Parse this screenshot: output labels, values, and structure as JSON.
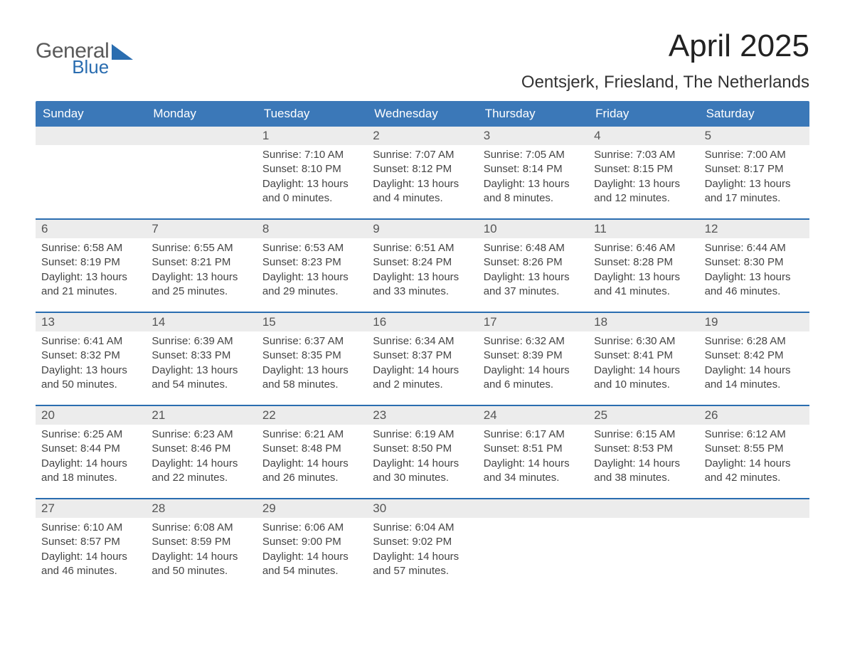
{
  "colors": {
    "header_blue": "#3b78b8",
    "accent_blue": "#2a6db0",
    "band_grey": "#ececec",
    "text": "#333333",
    "background": "#ffffff",
    "logo_grey": "#5a5a5a",
    "logo_blue": "#2a6db0"
  },
  "typography": {
    "title_fontsize_pt": 33,
    "location_fontsize_pt": 18,
    "weekday_fontsize_pt": 13,
    "daynum_fontsize_pt": 13,
    "body_fontsize_pt": 11,
    "font_family": "Arial"
  },
  "logo": {
    "line1": "General",
    "line2": "Blue"
  },
  "title": "April 2025",
  "location": "Oentsjerk, Friesland, The Netherlands",
  "weekdays": [
    "Sunday",
    "Monday",
    "Tuesday",
    "Wednesday",
    "Thursday",
    "Friday",
    "Saturday"
  ],
  "labels": {
    "sunrise": "Sunrise:",
    "sunset": "Sunset:",
    "daylight": "Daylight:"
  },
  "weeks": [
    [
      null,
      null,
      {
        "n": "1",
        "sunrise": "7:10 AM",
        "sunset": "8:10 PM",
        "daylight": "13 hours and 0 minutes."
      },
      {
        "n": "2",
        "sunrise": "7:07 AM",
        "sunset": "8:12 PM",
        "daylight": "13 hours and 4 minutes."
      },
      {
        "n": "3",
        "sunrise": "7:05 AM",
        "sunset": "8:14 PM",
        "daylight": "13 hours and 8 minutes."
      },
      {
        "n": "4",
        "sunrise": "7:03 AM",
        "sunset": "8:15 PM",
        "daylight": "13 hours and 12 minutes."
      },
      {
        "n": "5",
        "sunrise": "7:00 AM",
        "sunset": "8:17 PM",
        "daylight": "13 hours and 17 minutes."
      }
    ],
    [
      {
        "n": "6",
        "sunrise": "6:58 AM",
        "sunset": "8:19 PM",
        "daylight": "13 hours and 21 minutes."
      },
      {
        "n": "7",
        "sunrise": "6:55 AM",
        "sunset": "8:21 PM",
        "daylight": "13 hours and 25 minutes."
      },
      {
        "n": "8",
        "sunrise": "6:53 AM",
        "sunset": "8:23 PM",
        "daylight": "13 hours and 29 minutes."
      },
      {
        "n": "9",
        "sunrise": "6:51 AM",
        "sunset": "8:24 PM",
        "daylight": "13 hours and 33 minutes."
      },
      {
        "n": "10",
        "sunrise": "6:48 AM",
        "sunset": "8:26 PM",
        "daylight": "13 hours and 37 minutes."
      },
      {
        "n": "11",
        "sunrise": "6:46 AM",
        "sunset": "8:28 PM",
        "daylight": "13 hours and 41 minutes."
      },
      {
        "n": "12",
        "sunrise": "6:44 AM",
        "sunset": "8:30 PM",
        "daylight": "13 hours and 46 minutes."
      }
    ],
    [
      {
        "n": "13",
        "sunrise": "6:41 AM",
        "sunset": "8:32 PM",
        "daylight": "13 hours and 50 minutes."
      },
      {
        "n": "14",
        "sunrise": "6:39 AM",
        "sunset": "8:33 PM",
        "daylight": "13 hours and 54 minutes."
      },
      {
        "n": "15",
        "sunrise": "6:37 AM",
        "sunset": "8:35 PM",
        "daylight": "13 hours and 58 minutes."
      },
      {
        "n": "16",
        "sunrise": "6:34 AM",
        "sunset": "8:37 PM",
        "daylight": "14 hours and 2 minutes."
      },
      {
        "n": "17",
        "sunrise": "6:32 AM",
        "sunset": "8:39 PM",
        "daylight": "14 hours and 6 minutes."
      },
      {
        "n": "18",
        "sunrise": "6:30 AM",
        "sunset": "8:41 PM",
        "daylight": "14 hours and 10 minutes."
      },
      {
        "n": "19",
        "sunrise": "6:28 AM",
        "sunset": "8:42 PM",
        "daylight": "14 hours and 14 minutes."
      }
    ],
    [
      {
        "n": "20",
        "sunrise": "6:25 AM",
        "sunset": "8:44 PM",
        "daylight": "14 hours and 18 minutes."
      },
      {
        "n": "21",
        "sunrise": "6:23 AM",
        "sunset": "8:46 PM",
        "daylight": "14 hours and 22 minutes."
      },
      {
        "n": "22",
        "sunrise": "6:21 AM",
        "sunset": "8:48 PM",
        "daylight": "14 hours and 26 minutes."
      },
      {
        "n": "23",
        "sunrise": "6:19 AM",
        "sunset": "8:50 PM",
        "daylight": "14 hours and 30 minutes."
      },
      {
        "n": "24",
        "sunrise": "6:17 AM",
        "sunset": "8:51 PM",
        "daylight": "14 hours and 34 minutes."
      },
      {
        "n": "25",
        "sunrise": "6:15 AM",
        "sunset": "8:53 PM",
        "daylight": "14 hours and 38 minutes."
      },
      {
        "n": "26",
        "sunrise": "6:12 AM",
        "sunset": "8:55 PM",
        "daylight": "14 hours and 42 minutes."
      }
    ],
    [
      {
        "n": "27",
        "sunrise": "6:10 AM",
        "sunset": "8:57 PM",
        "daylight": "14 hours and 46 minutes."
      },
      {
        "n": "28",
        "sunrise": "6:08 AM",
        "sunset": "8:59 PM",
        "daylight": "14 hours and 50 minutes."
      },
      {
        "n": "29",
        "sunrise": "6:06 AM",
        "sunset": "9:00 PM",
        "daylight": "14 hours and 54 minutes."
      },
      {
        "n": "30",
        "sunrise": "6:04 AM",
        "sunset": "9:02 PM",
        "daylight": "14 hours and 57 minutes."
      },
      null,
      null,
      null
    ]
  ]
}
